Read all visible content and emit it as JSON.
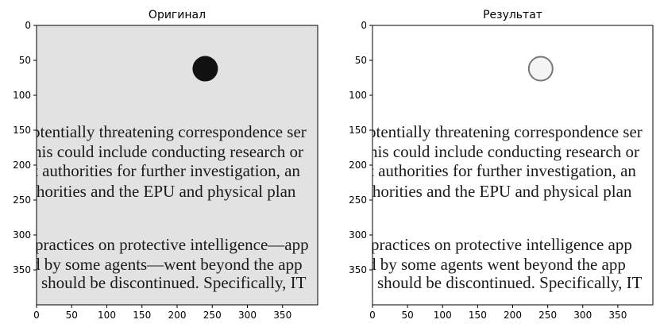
{
  "chart_data": [
    {
      "type": "image",
      "title": "Оригинал",
      "background": "#e2e2e2",
      "xlim": [
        0,
        400
      ],
      "ylim": [
        400,
        0
      ],
      "xticks": [
        0,
        50,
        100,
        150,
        200,
        250,
        300,
        350
      ],
      "yticks": [
        0,
        50,
        100,
        150,
        200,
        250,
        300,
        350
      ],
      "image_text": [
        "otentially threatening correspondence ser",
        "his could include conducting research or",
        "t authorities for further investigation, an",
        "thorities and the EPU and physical plan",
        "practices on protective intelligence—app",
        "d by some agents—went beyond the app",
        "should be discontinued. Specifically, IT"
      ]
    },
    {
      "type": "image",
      "title": "Результат",
      "background": "#ffffff",
      "xlim": [
        0,
        400
      ],
      "ylim": [
        400,
        0
      ],
      "xticks": [
        0,
        50,
        100,
        150,
        200,
        250,
        300,
        350
      ],
      "yticks": [
        0,
        50,
        100,
        150,
        200,
        250,
        300,
        350
      ],
      "image_text": [
        "otentially threatening correspondence ser",
        "his could include conducting research or",
        "t authorities for further investigation, an",
        "thorities and the EPU and physical plan",
        "practices on protective intelligence   app",
        "d by some agents    went beyond the app",
        "should be discontinued. Specifically, IT"
      ]
    }
  ]
}
